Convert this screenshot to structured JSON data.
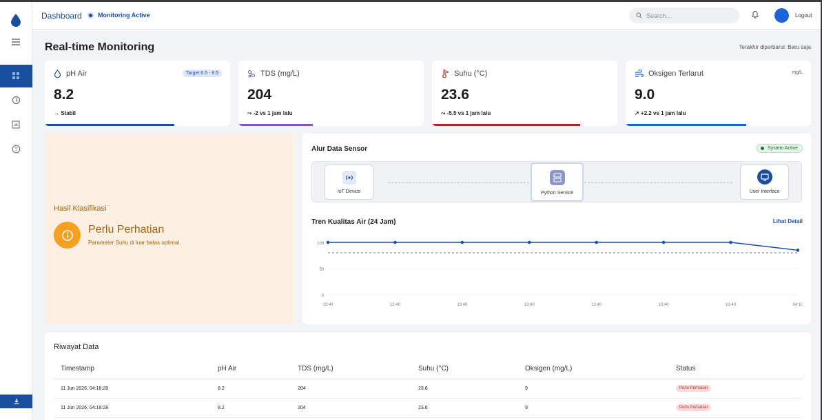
{
  "header": {
    "title": "Dashboard",
    "status": "Monitoring Active",
    "search_placeholder": "Search...",
    "logout": "Logout"
  },
  "sidebar": {
    "items": [
      {
        "name": "menu-icon"
      },
      {
        "name": "dashboard-icon",
        "active": true
      },
      {
        "name": "history-icon"
      },
      {
        "name": "report-icon"
      },
      {
        "name": "help-icon"
      }
    ],
    "bottom": "download-icon"
  },
  "page": {
    "title": "Real-time Monitoring",
    "updated": "Terakhir diperbarui: Baru saja"
  },
  "cards": [
    {
      "label": "pH Air",
      "badge": "Target 6.5 - 8.5",
      "value": "8.2",
      "trend": "→ Stabil",
      "color": "#1a4fa0",
      "progress": 0.7
    },
    {
      "label": "TDS (mg/L)",
      "value": "204",
      "trend": "⤳ -2 vs 1 jam lalu",
      "color": "#7e57c2",
      "progress": 0.4
    },
    {
      "label": "Suhu (°C)",
      "value": "23.6",
      "trend": "⤳ -5.5 vs 1 jam lalu",
      "color": "#b3261e",
      "progress": 0.8
    },
    {
      "label": "Oksigen Terlarut",
      "unit": "mg/L",
      "value": "9.0",
      "trend": "↗ +2.2 vs 1 jam lalu",
      "color": "#1a63d8",
      "progress": 0.65
    }
  ],
  "classification": {
    "label": "Hasil Klasifikasi",
    "title": "Perlu Perhatian",
    "description": "Parameter Suhu di luar batas optimal."
  },
  "flow": {
    "title": "Alur Data Sensor",
    "badge": "System Active",
    "nodes": [
      "IoT Device",
      "Python Service",
      "User Interface"
    ]
  },
  "trend": {
    "title": "Tren Kualitas Air (24 Jam)",
    "link": "Lihat Detail"
  },
  "chart_data": {
    "type": "line",
    "x": [
      "13:40",
      "13:40",
      "13:40",
      "13:40",
      "13:40",
      "13:40",
      "13:40",
      "04:18"
    ],
    "series": [
      {
        "values": [
          100,
          100,
          100,
          100,
          100,
          100,
          100,
          85
        ],
        "color": "#1a4fa0"
      }
    ],
    "reference_line": 80,
    "ylim": [
      0,
      100
    ],
    "yticks": [
      0,
      50,
      100
    ],
    "title": "",
    "xlabel": "",
    "ylabel": ""
  },
  "history": {
    "title": "Riwayat Data",
    "columns": [
      "Timestamp",
      "pH Air",
      "TDS (mg/L)",
      "Suhu (°C)",
      "Oksigen (mg/L)",
      "Status"
    ],
    "rows": [
      {
        "timestamp": "11 Jun 2026, 04:18:28",
        "ph": "8.2",
        "tds": "204",
        "suhu": "23.6",
        "oksigen": "9",
        "status": "Perlu Perhatian"
      },
      {
        "timestamp": "11 Jun 2026, 04:18:28",
        "ph": "8.2",
        "tds": "204",
        "suhu": "23.6",
        "oksigen": "9",
        "status": "Perlu Perhatian"
      }
    ]
  }
}
